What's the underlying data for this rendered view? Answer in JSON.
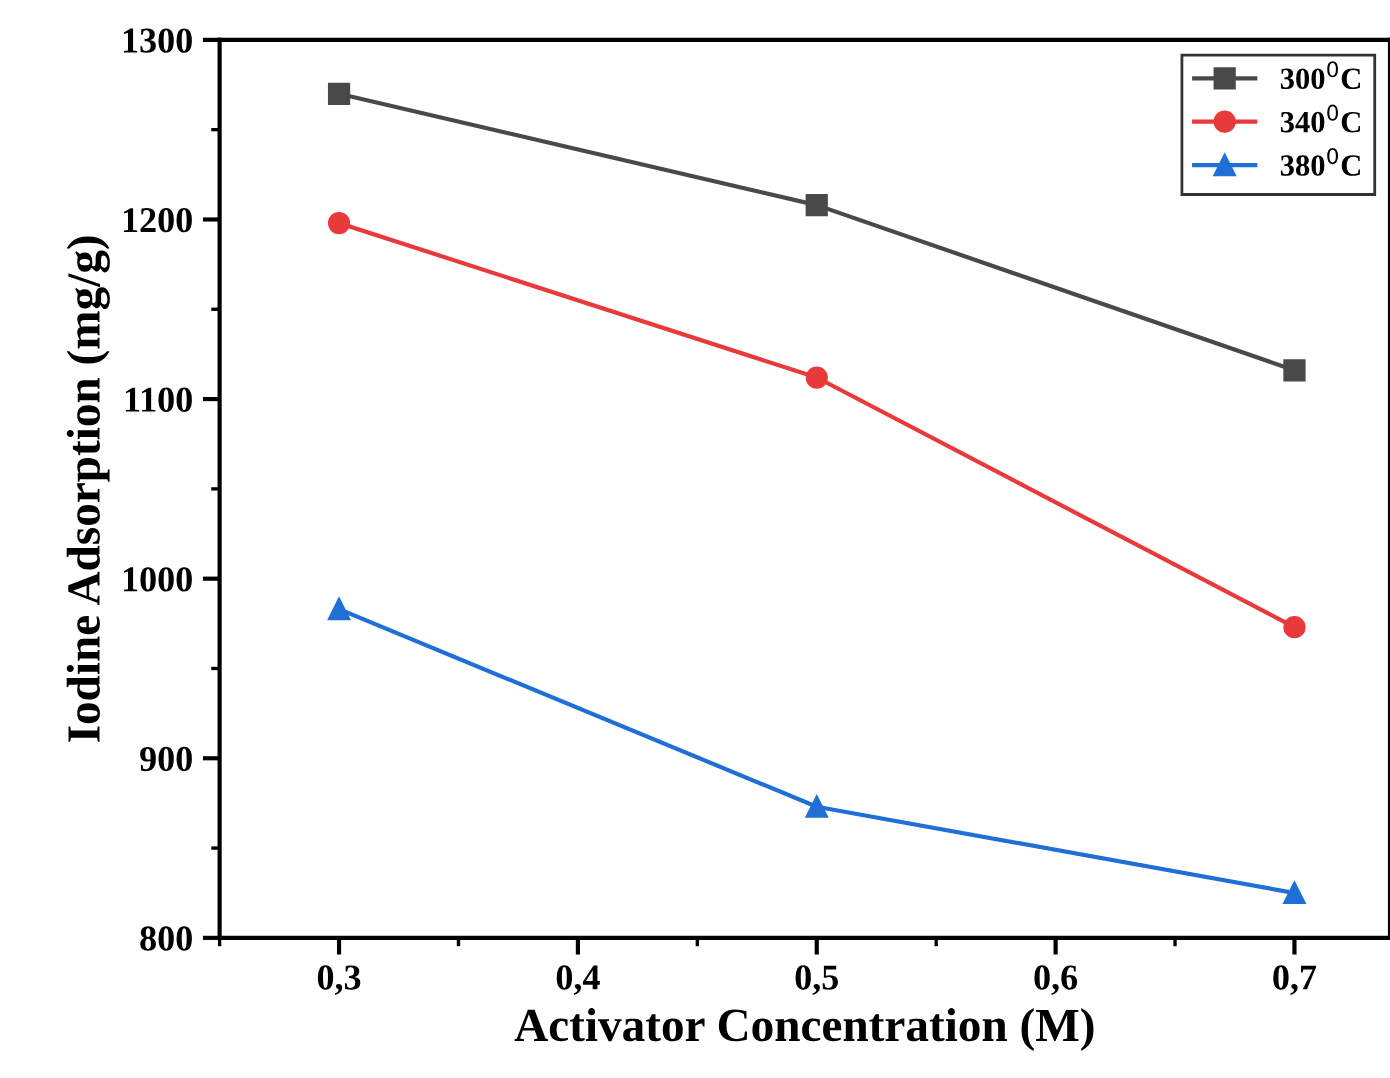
{
  "chart_data": {
    "type": "line",
    "xlabel": "Activator Concentration (M)",
    "ylabel": "Iodine Adsorption (mg/g)",
    "x": [
      0.3,
      0.5,
      0.7
    ],
    "series": [
      {
        "name": "300$^{0}$C",
        "color": "#494949",
        "marker": "square",
        "values": [
          1270,
          1208,
          1116
        ]
      },
      {
        "name": "340$^{0}$C",
        "color": "#e8393b",
        "marker": "circle",
        "values": [
          1198,
          1112,
          973
        ]
      },
      {
        "name": "380$^{0}$C",
        "color": "#1f6fd6",
        "marker": "triangle",
        "values": [
          983,
          873,
          825
        ]
      }
    ],
    "xlim": [
      0.25,
      0.74
    ],
    "xticks": [
      {
        "value": 0.3,
        "label": "0,3"
      },
      {
        "value": 0.4,
        "label": "0,4"
      },
      {
        "value": 0.5,
        "label": "0,5"
      },
      {
        "value": 0.6,
        "label": "0,6"
      },
      {
        "value": 0.7,
        "label": "0,7"
      }
    ],
    "ylim": [
      800,
      1300
    ],
    "yticks": [
      800,
      900,
      1000,
      1100,
      1200,
      1300
    ],
    "grid": false,
    "legend": "top right",
    "line_style": "solid"
  }
}
